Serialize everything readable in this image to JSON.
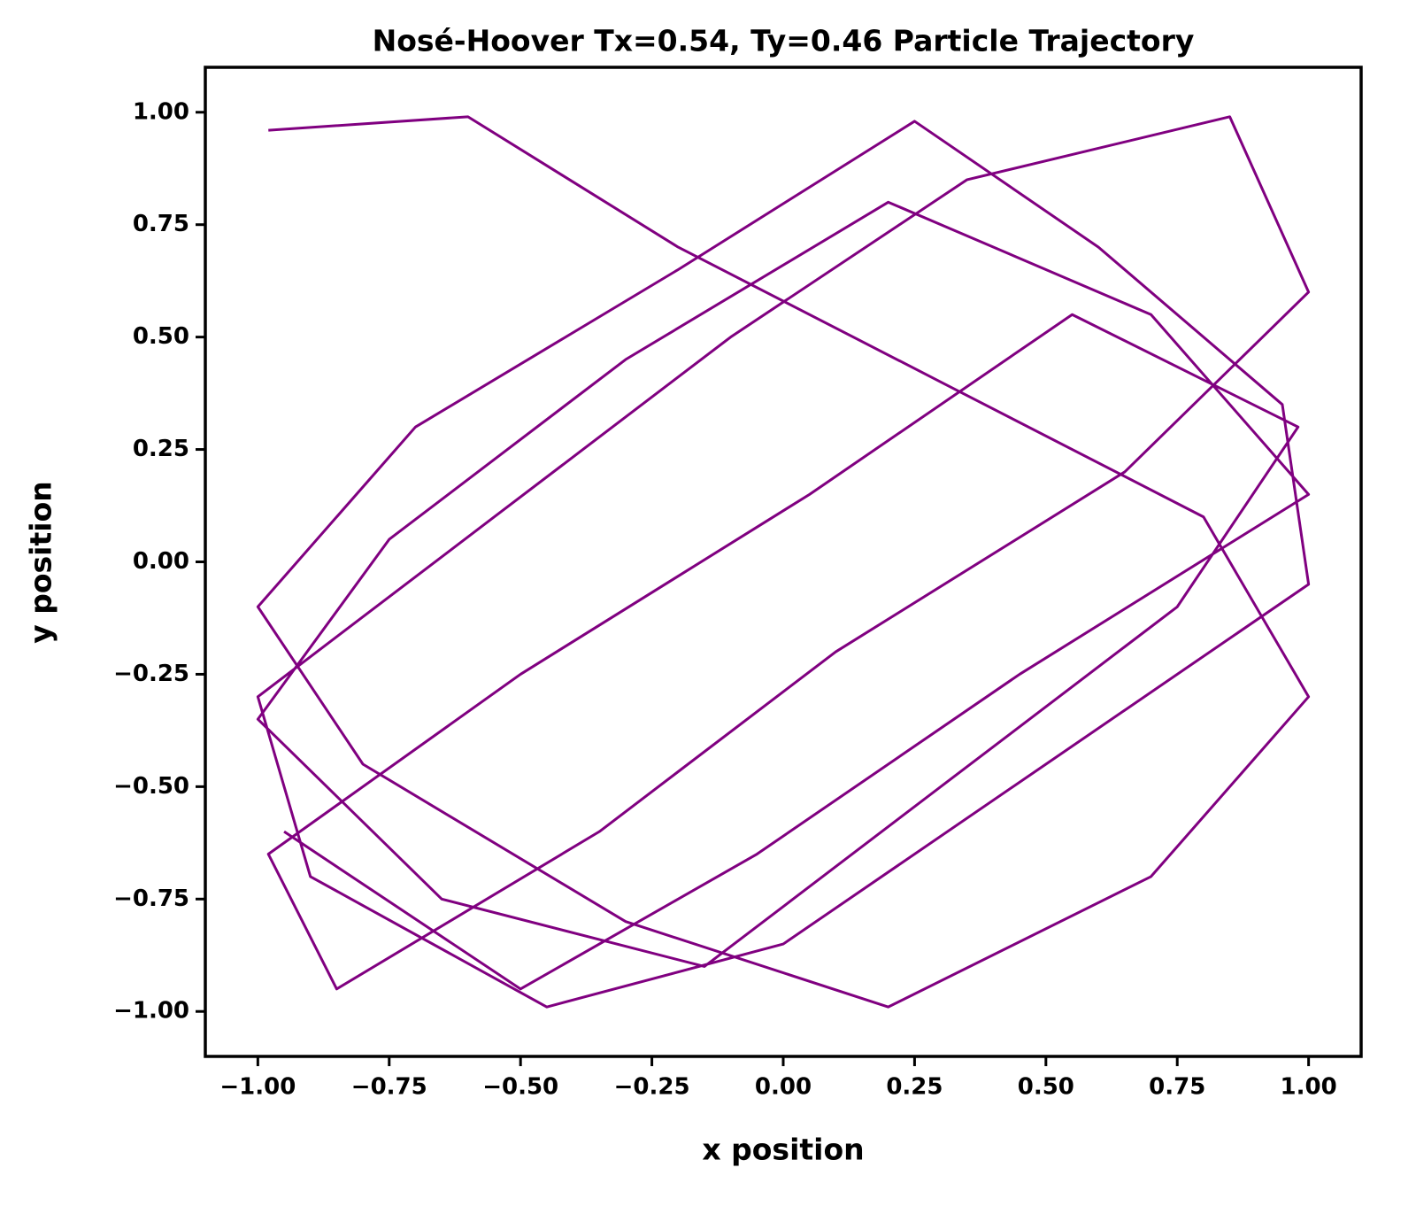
{
  "chart_data": {
    "type": "line",
    "title": "Nosé-Hoover Tx=0.54, Ty=0.46 Particle Trajectory",
    "xlabel": "x position",
    "ylabel": "y position",
    "x": [
      -0.98,
      -0.6,
      -0.2,
      0.3,
      0.8,
      1.0,
      0.7,
      0.2,
      -0.3,
      -0.8,
      -1.0,
      -0.7,
      -0.2,
      0.25,
      0.6,
      0.95,
      1.0,
      0.5,
      0.0,
      -0.45,
      -0.9,
      -1.0,
      -0.55,
      -0.1,
      0.35,
      0.85,
      1.0,
      0.65,
      0.1,
      -0.35,
      -0.85,
      -0.98,
      -0.5,
      0.05,
      0.55,
      0.98,
      0.75,
      0.3,
      -0.15,
      -0.65,
      -1.0,
      -0.75,
      -0.3,
      0.2,
      0.7,
      1.0,
      0.45,
      -0.05,
      -0.5,
      -0.95
    ],
    "series": [
      {
        "color": "#800080",
        "values": [
          0.96,
          0.99,
          0.7,
          0.4,
          0.1,
          -0.3,
          -0.7,
          -0.99,
          -0.8,
          -0.45,
          -0.1,
          0.3,
          0.65,
          0.98,
          0.7,
          0.35,
          -0.05,
          -0.45,
          -0.85,
          -0.99,
          -0.7,
          -0.3,
          0.1,
          0.5,
          0.85,
          0.99,
          0.6,
          0.2,
          -0.2,
          -0.6,
          -0.95,
          -0.65,
          -0.25,
          0.15,
          0.55,
          0.3,
          -0.1,
          -0.5,
          -0.9,
          -0.75,
          -0.35,
          0.05,
          0.45,
          0.8,
          0.55,
          0.15,
          -0.25,
          -0.65,
          -0.95,
          -0.6
        ]
      }
    ],
    "xlim": [
      -1.1,
      1.1
    ],
    "ylim": [
      -1.1,
      1.1
    ],
    "xticks": [
      {
        "value": -1,
        "label": "−1.00"
      },
      {
        "value": -0.75,
        "label": "−0.75"
      },
      {
        "value": -0.5,
        "label": "−0.50"
      },
      {
        "value": -0.25,
        "label": "−0.25"
      },
      {
        "value": 0,
        "label": "0.00"
      },
      {
        "value": 0.25,
        "label": "0.25"
      },
      {
        "value": 0.5,
        "label": "0.50"
      },
      {
        "value": 0.75,
        "label": "0.75"
      },
      {
        "value": 1,
        "label": "1.00"
      }
    ],
    "yticks": [
      {
        "value": -1,
        "label": "−1.00"
      },
      {
        "value": -0.75,
        "label": "−0.75"
      },
      {
        "value": -0.5,
        "label": "−0.50"
      },
      {
        "value": -0.25,
        "label": "−0.25"
      },
      {
        "value": 0,
        "label": "0.00"
      },
      {
        "value": 0.25,
        "label": "0.25"
      },
      {
        "value": 0.5,
        "label": "0.50"
      },
      {
        "value": 0.75,
        "label": "0.75"
      },
      {
        "value": 1,
        "label": "1.00"
      }
    ],
    "grid": false
  }
}
